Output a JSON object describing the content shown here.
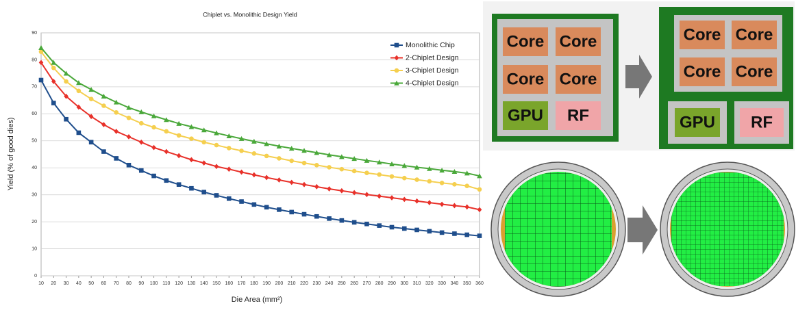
{
  "chart_data": {
    "type": "line",
    "title": "Chiplet vs. Monolithic Design Yield",
    "x_label": "Die Area (mm²)",
    "y_label": "Yield (% of good dies)",
    "x": [
      10,
      20,
      30,
      40,
      50,
      60,
      70,
      80,
      90,
      100,
      110,
      120,
      130,
      140,
      150,
      160,
      170,
      180,
      190,
      200,
      210,
      220,
      230,
      240,
      250,
      260,
      270,
      280,
      290,
      300,
      310,
      320,
      330,
      340,
      350,
      360
    ],
    "series": [
      {
        "name": "Monolithic Chip",
        "color": "#1f4e8c",
        "marker": "square",
        "values": [
          72.5,
          64,
          58,
          53,
          49.5,
          46,
          43.5,
          41,
          39,
          37,
          35.3,
          33.8,
          32.4,
          31,
          29.8,
          28.6,
          27.5,
          26.4,
          25.4,
          24.5,
          23.6,
          22.8,
          22,
          21.2,
          20.5,
          19.8,
          19.2,
          18.6,
          18,
          17.5,
          17,
          16.5,
          16,
          15.6,
          15.2,
          14.8
        ]
      },
      {
        "name": "2-Chiplet Design",
        "color": "#e8312a",
        "marker": "diamond",
        "values": [
          79,
          72,
          66.5,
          62.5,
          59,
          56,
          53.5,
          51.5,
          49.5,
          47.5,
          46,
          44.5,
          43,
          41.8,
          40.5,
          39.5,
          38.4,
          37.4,
          36.4,
          35.5,
          34.6,
          33.8,
          33,
          32.2,
          31.5,
          30.8,
          30.1,
          29.5,
          28.9,
          28.3,
          27.7,
          27.1,
          26.5,
          26,
          25.5,
          24.5
        ]
      },
      {
        "name": "3-Chiplet Design",
        "color": "#f5cf4f",
        "marker": "circle",
        "values": [
          83,
          77,
          72,
          68.5,
          65.5,
          63,
          60.5,
          58.5,
          56.5,
          55,
          53.5,
          52,
          50.8,
          49.5,
          48.4,
          47.3,
          46.3,
          45.3,
          44.4,
          43.5,
          42.6,
          41.8,
          41,
          40.2,
          39.5,
          38.8,
          38.1,
          37.5,
          36.8,
          36.2,
          35.6,
          35,
          34.4,
          33.9,
          33.3,
          32
        ]
      },
      {
        "name": "4-Chiplet Design",
        "color": "#4aa83a",
        "marker": "triangle",
        "values": [
          84.5,
          79,
          75,
          71.5,
          69,
          66.5,
          64.3,
          62.3,
          60.7,
          59.2,
          57.8,
          56.4,
          55.2,
          54,
          52.9,
          51.8,
          50.8,
          49.8,
          48.9,
          48,
          47.2,
          46.4,
          45.6,
          44.8,
          44.1,
          43.4,
          42.7,
          42.1,
          41.4,
          40.8,
          40.2,
          39.7,
          39.1,
          38.6,
          38,
          37
        ]
      }
    ],
    "xlim": [
      10,
      360
    ],
    "xticks": [
      10,
      20,
      30,
      40,
      50,
      60,
      70,
      80,
      90,
      100,
      110,
      120,
      130,
      140,
      150,
      160,
      170,
      180,
      190,
      200,
      210,
      220,
      230,
      240,
      250,
      260,
      270,
      280,
      290,
      300,
      310,
      320,
      330,
      340,
      350,
      360
    ],
    "ylim": [
      0,
      90
    ],
    "yticks": [
      0,
      10,
      20,
      30,
      40,
      50,
      60,
      70,
      80,
      90
    ],
    "grid": true,
    "legend": "upper right"
  },
  "diagram": {
    "before": {
      "cores": [
        "Core",
        "Core",
        "Core",
        "Core"
      ],
      "gpu": "GPU",
      "rf": "RF"
    },
    "after": {
      "cores": [
        "Core",
        "Core",
        "Core",
        "Core"
      ],
      "gpu": "GPU",
      "rf": "RF"
    }
  }
}
